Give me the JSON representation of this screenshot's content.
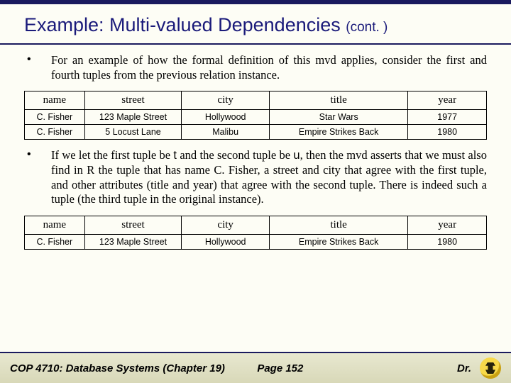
{
  "title_main": "Example: Multi-valued Dependencies ",
  "title_cont": "(cont. )",
  "bullet1": "For an example of how the formal definition of this mvd applies, consider the first and fourth tuples from the previous relation instance.",
  "bullet2_a": "If we let the first tuple be ",
  "bullet2_t": "t",
  "bullet2_b": " and the second tuple be ",
  "bullet2_u": "u",
  "bullet2_c": ", then the mvd asserts that we must also find in R the tuple that has name C. Fisher, a street and city that agree with the first tuple, and other attributes (title and year) that agree with the second tuple.  There is indeed such a tuple (the third tuple in the original instance).",
  "table1": {
    "columns": [
      "name",
      "street",
      "city",
      "title",
      "year"
    ],
    "rows": [
      [
        "C. Fisher",
        "123 Maple Street",
        "Hollywood",
        "Star Wars",
        "1977"
      ],
      [
        "C. Fisher",
        "5 Locust Lane",
        "Malibu",
        "Empire Strikes Back",
        "1980"
      ]
    ]
  },
  "table2": {
    "columns": [
      "name",
      "street",
      "city",
      "title",
      "year"
    ],
    "rows": [
      [
        "C. Fisher",
        "123 Maple Street",
        "Hollywood",
        "Empire Strikes Back",
        "1980"
      ]
    ]
  },
  "footer": {
    "course": "COP 4710: Database Systems  (Chapter 19)",
    "page": "Page 152",
    "author": "Dr."
  },
  "styling": {
    "slide_bg": "#fdfdf5",
    "accent_bar": "#1a1a5e",
    "title_color": "#1a1a7a",
    "title_fontsize": 27,
    "body_fontsize": 16.5,
    "table_header_fontsize": 15,
    "table_cell_fontsize": 12.5,
    "footer_gradient": [
      "#e8e8d0",
      "#d8d8b8"
    ],
    "logo_colors": [
      "#f7d94a",
      "#c9a112",
      "#000000"
    ],
    "column_widths_pct": [
      13,
      21,
      19,
      30,
      17
    ]
  }
}
